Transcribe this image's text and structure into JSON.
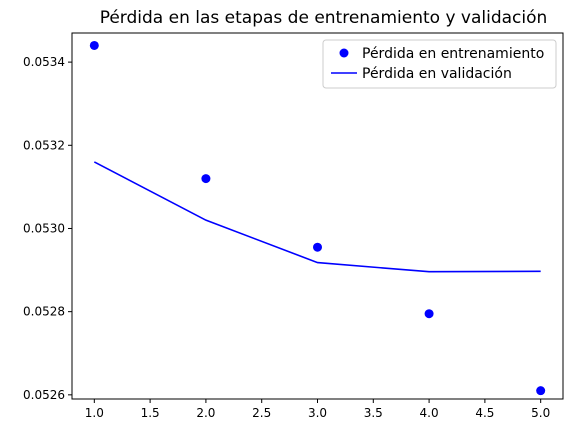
{
  "chart_data": {
    "type": "line",
    "title": "Pérdida en las etapas de entrenamiento y validación",
    "xlabel": "",
    "ylabel": "",
    "xlim": [
      0.8,
      5.2
    ],
    "ylim": [
      0.05259,
      0.05347
    ],
    "x_ticks": [
      "1.0",
      "1.5",
      "2.0",
      "2.5",
      "3.0",
      "3.5",
      "4.0",
      "4.5",
      "5.0"
    ],
    "x_tick_values": [
      1.0,
      1.5,
      2.0,
      2.5,
      3.0,
      3.5,
      4.0,
      4.5,
      5.0
    ],
    "y_ticks": [
      "0.0526",
      "0.0528",
      "0.0530",
      "0.0532",
      "0.0534"
    ],
    "y_tick_values": [
      0.0526,
      0.0528,
      0.053,
      0.0532,
      0.0534
    ],
    "grid": false,
    "legend_position": "top-right",
    "series": [
      {
        "name": "Pérdida en entrenamiento",
        "style": "points",
        "color": "#0000ff",
        "x": [
          1,
          2,
          3,
          4,
          5
        ],
        "y": [
          0.05344,
          0.05312,
          0.052955,
          0.052795,
          0.05261
        ]
      },
      {
        "name": "Pérdida en validación",
        "style": "line",
        "color": "#0000ff",
        "x": [
          1,
          2,
          3,
          4,
          5
        ],
        "y": [
          0.05316,
          0.05302,
          0.052918,
          0.052896,
          0.052897
        ]
      }
    ]
  }
}
